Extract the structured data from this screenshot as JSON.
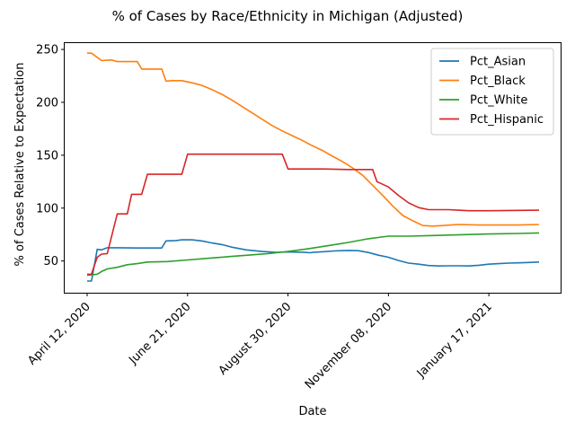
{
  "chart_data": {
    "type": "line",
    "title": "% of Cases by Race/Ethnicity in Michigan (Adjusted)",
    "xlabel": "Date",
    "ylabel": "% of Cases Relative to Expectation",
    "x_start": "2020-04-12",
    "x_end": "2021-02-21",
    "x_ticks": [
      {
        "date": "2020-04-12",
        "label": "April 12, 2020"
      },
      {
        "date": "2020-06-21",
        "label": "June 21, 2020"
      },
      {
        "date": "2020-08-30",
        "label": "August 30, 2020"
      },
      {
        "date": "2020-11-08",
        "label": "November 08, 2020"
      },
      {
        "date": "2021-01-17",
        "label": "January 17, 2021"
      }
    ],
    "y_ticks": [
      50,
      100,
      150,
      200,
      250
    ],
    "ylim": [
      20,
      256
    ],
    "legend_position": "top-right",
    "grid": false,
    "series": [
      {
        "name": "Pct_Asian",
        "color": "#1f77b4",
        "points": [
          [
            "2020-04-12",
            31
          ],
          [
            "2020-04-15",
            31
          ],
          [
            "2020-04-19",
            61
          ],
          [
            "2020-04-22",
            60.5
          ],
          [
            "2020-04-26",
            62.5
          ],
          [
            "2020-05-03",
            62.5
          ],
          [
            "2020-05-17",
            62.3
          ],
          [
            "2020-06-03",
            62.3
          ],
          [
            "2020-06-06",
            69
          ],
          [
            "2020-06-13",
            69.3
          ],
          [
            "2020-06-17",
            70
          ],
          [
            "2020-06-24",
            70
          ],
          [
            "2020-07-01",
            69
          ],
          [
            "2020-07-08",
            67
          ],
          [
            "2020-07-15",
            65.5
          ],
          [
            "2020-07-22",
            63
          ],
          [
            "2020-08-01",
            60.5
          ],
          [
            "2020-08-12",
            59
          ],
          [
            "2020-08-22",
            58.2
          ],
          [
            "2020-08-30",
            58.5
          ],
          [
            "2020-09-10",
            58.3
          ],
          [
            "2020-09-14",
            57.8
          ],
          [
            "2020-09-17",
            58.3
          ],
          [
            "2020-09-24",
            58.8
          ],
          [
            "2020-10-01",
            59.5
          ],
          [
            "2020-10-11",
            60
          ],
          [
            "2020-10-18",
            59.7
          ],
          [
            "2020-10-25",
            58
          ],
          [
            "2020-11-01",
            55.5
          ],
          [
            "2020-11-08",
            53.5
          ],
          [
            "2020-11-15",
            50.5
          ],
          [
            "2020-11-22",
            48
          ],
          [
            "2020-11-29",
            47
          ],
          [
            "2020-12-06",
            45.7
          ],
          [
            "2020-12-13",
            45.3
          ],
          [
            "2020-12-20",
            45.5
          ],
          [
            "2020-12-27",
            45.5
          ],
          [
            "2021-01-03",
            45.3
          ],
          [
            "2021-01-10",
            46
          ],
          [
            "2021-01-17",
            47
          ],
          [
            "2021-01-24",
            47.5
          ],
          [
            "2021-01-31",
            48
          ],
          [
            "2021-02-07",
            48.3
          ],
          [
            "2021-02-14",
            48.6
          ],
          [
            "2021-02-21",
            49
          ]
        ]
      },
      {
        "name": "Pct_Black",
        "color": "#ff7f0e",
        "points": [
          [
            "2020-04-12",
            246.5
          ],
          [
            "2020-04-15",
            246.5
          ],
          [
            "2020-04-22",
            239.5
          ],
          [
            "2020-04-29",
            240
          ],
          [
            "2020-05-03",
            238.5
          ],
          [
            "2020-05-17",
            238.5
          ],
          [
            "2020-05-20",
            231.5
          ],
          [
            "2020-06-03",
            231.5
          ],
          [
            "2020-06-06",
            220
          ],
          [
            "2020-06-10",
            220.5
          ],
          [
            "2020-06-17",
            220.5
          ],
          [
            "2020-06-24",
            218.5
          ],
          [
            "2020-07-01",
            216
          ],
          [
            "2020-07-08",
            212
          ],
          [
            "2020-07-15",
            207.5
          ],
          [
            "2020-07-22",
            202
          ],
          [
            "2020-07-29",
            196
          ],
          [
            "2020-08-05",
            190
          ],
          [
            "2020-08-12",
            184
          ],
          [
            "2020-08-19",
            178
          ],
          [
            "2020-08-26",
            173
          ],
          [
            "2020-09-02",
            168.5
          ],
          [
            "2020-09-09",
            164
          ],
          [
            "2020-09-16",
            159
          ],
          [
            "2020-09-23",
            154.5
          ],
          [
            "2020-09-30",
            149
          ],
          [
            "2020-10-07",
            144
          ],
          [
            "2020-10-14",
            138
          ],
          [
            "2020-10-21",
            131
          ],
          [
            "2020-10-28",
            121.5
          ],
          [
            "2020-11-04",
            112
          ],
          [
            "2020-11-11",
            102
          ],
          [
            "2020-11-18",
            93
          ],
          [
            "2020-11-25",
            88
          ],
          [
            "2020-12-02",
            83.5
          ],
          [
            "2020-12-09",
            83
          ],
          [
            "2020-12-16",
            83.5
          ],
          [
            "2020-12-27",
            84.5
          ],
          [
            "2021-01-10",
            84
          ],
          [
            "2021-01-24",
            84
          ],
          [
            "2021-02-07",
            84
          ],
          [
            "2021-02-21",
            84.5
          ]
        ]
      },
      {
        "name": "Pct_White",
        "color": "#2ca02c",
        "points": [
          [
            "2020-04-12",
            36.5
          ],
          [
            "2020-04-19",
            37.5
          ],
          [
            "2020-04-22",
            40
          ],
          [
            "2020-04-26",
            42.5
          ],
          [
            "2020-05-03",
            44
          ],
          [
            "2020-05-10",
            46.5
          ],
          [
            "2020-05-17",
            47.5
          ],
          [
            "2020-05-24",
            49
          ],
          [
            "2020-06-07",
            49.5
          ],
          [
            "2020-06-21",
            51
          ],
          [
            "2020-07-05",
            52.5
          ],
          [
            "2020-07-19",
            54
          ],
          [
            "2020-08-02",
            55.5
          ],
          [
            "2020-08-16",
            57
          ],
          [
            "2020-08-30",
            59
          ],
          [
            "2020-09-13",
            61.5
          ],
          [
            "2020-09-27",
            64.5
          ],
          [
            "2020-10-11",
            67.5
          ],
          [
            "2020-10-25",
            71
          ],
          [
            "2020-11-08",
            73.5
          ],
          [
            "2020-11-22",
            73.5
          ],
          [
            "2020-12-06",
            74
          ],
          [
            "2020-12-20",
            74.5
          ],
          [
            "2021-01-03",
            75
          ],
          [
            "2021-01-17",
            75.5
          ],
          [
            "2021-02-07",
            76
          ],
          [
            "2021-02-21",
            76.5
          ]
        ]
      },
      {
        "name": "Pct_Hispanic",
        "color": "#d62728",
        "points": [
          [
            "2020-04-12",
            37.5
          ],
          [
            "2020-04-15",
            37.5
          ],
          [
            "2020-04-19",
            53.5
          ],
          [
            "2020-04-22",
            56.5
          ],
          [
            "2020-04-26",
            57
          ],
          [
            "2020-05-03",
            94.5
          ],
          [
            "2020-05-10",
            94.5
          ],
          [
            "2020-05-13",
            113
          ],
          [
            "2020-05-20",
            113
          ],
          [
            "2020-05-24",
            132
          ],
          [
            "2020-06-17",
            132
          ],
          [
            "2020-06-21",
            151
          ],
          [
            "2020-08-26",
            151
          ],
          [
            "2020-08-30",
            137
          ],
          [
            "2020-09-24",
            137
          ],
          [
            "2020-10-11",
            136.5
          ],
          [
            "2020-10-28",
            136.5
          ],
          [
            "2020-10-31",
            125
          ],
          [
            "2020-11-08",
            120
          ],
          [
            "2020-11-15",
            112
          ],
          [
            "2020-11-22",
            105
          ],
          [
            "2020-11-29",
            100.5
          ],
          [
            "2020-12-06",
            98.5
          ],
          [
            "2020-12-20",
            98.5
          ],
          [
            "2021-01-03",
            97.5
          ],
          [
            "2021-01-17",
            97.5
          ],
          [
            "2021-02-21",
            98
          ]
        ]
      }
    ]
  }
}
